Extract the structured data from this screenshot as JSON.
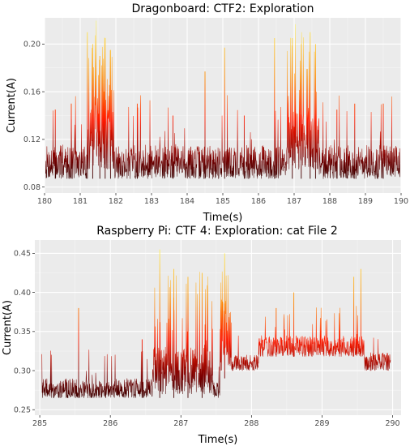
{
  "chart_data": [
    {
      "type": "line",
      "title": "Dragonboard: CTF2: Exploration",
      "xlabel": "Time(s)",
      "ylabel": "Current(A)",
      "xlim": [
        180,
        190
      ],
      "ylim": [
        0.075,
        0.222
      ],
      "xticks": [
        180,
        181,
        182,
        183,
        184,
        185,
        186,
        187,
        188,
        189,
        190
      ],
      "xtick_labels": [
        "180",
        "181",
        "182",
        "183",
        "184",
        "185",
        "186",
        "187",
        "188",
        "189",
        "190"
      ],
      "yticks": [
        0.08,
        0.12,
        0.16,
        0.2
      ],
      "ytick_labels": [
        "0.08",
        "0.12",
        "0.16",
        "0.20"
      ],
      "grid": true,
      "colormap": [
        "#1a0000",
        "#8b0000",
        "#ff0000",
        "#ff8c00",
        "#ffff66"
      ],
      "data_range": [
        180.03,
        189.97
      ],
      "baseline_segments": [
        {
          "x": [
            180.0,
            190.0
          ],
          "low": 0.087,
          "high": 0.115
        }
      ],
      "bursts": [
        {
          "x": [
            181.2,
            181.95
          ],
          "low": 0.095,
          "high": 0.145,
          "peak": 0.215
        },
        {
          "x": [
            186.8,
            187.7
          ],
          "low": 0.095,
          "high": 0.145,
          "peak": 0.21
        }
      ],
      "spikes": [
        {
          "x": 180.3,
          "y": 0.145
        },
        {
          "x": 180.75,
          "y": 0.15
        },
        {
          "x": 181.2,
          "y": 0.21
        },
        {
          "x": 181.35,
          "y": 0.2
        },
        {
          "x": 181.55,
          "y": 0.19
        },
        {
          "x": 181.7,
          "y": 0.205
        },
        {
          "x": 181.85,
          "y": 0.195
        },
        {
          "x": 182.6,
          "y": 0.15
        },
        {
          "x": 183.6,
          "y": 0.14
        },
        {
          "x": 184.5,
          "y": 0.177
        },
        {
          "x": 185.05,
          "y": 0.197
        },
        {
          "x": 185.6,
          "y": 0.14
        },
        {
          "x": 186.45,
          "y": 0.205
        },
        {
          "x": 186.95,
          "y": 0.205
        },
        {
          "x": 187.2,
          "y": 0.2
        },
        {
          "x": 187.45,
          "y": 0.21
        },
        {
          "x": 187.6,
          "y": 0.2
        },
        {
          "x": 188.2,
          "y": 0.145
        },
        {
          "x": 188.7,
          "y": 0.15
        },
        {
          "x": 189.5,
          "y": 0.15
        }
      ]
    },
    {
      "type": "line",
      "title": "Raspberry Pi: CTF 4: Exploration: cat File 2",
      "xlabel": "Time(s)",
      "ylabel": "Current(A)",
      "xlim": [
        284.93,
        290.12
      ],
      "ylim": [
        0.243,
        0.467
      ],
      "xticks": [
        285,
        286,
        287,
        288,
        289,
        290
      ],
      "xtick_labels": [
        "285",
        "286",
        "287",
        "288",
        "289",
        "290"
      ],
      "yticks": [
        0.25,
        0.3,
        0.35,
        0.4,
        0.45
      ],
      "ytick_labels": [
        "0.25",
        "0.30",
        "0.35",
        "0.40",
        "0.45"
      ],
      "grid": true,
      "colormap": [
        "#1a0000",
        "#8b0000",
        "#ff0000",
        "#ff8c00",
        "#ffff66"
      ],
      "data_range": [
        285.03,
        289.97
      ],
      "baseline_segments": [
        {
          "x": [
            285.03,
            287.55
          ],
          "low": 0.265,
          "high": 0.29
        },
        {
          "x": [
            287.55,
            287.7
          ],
          "low": 0.29,
          "high": 0.37
        },
        {
          "x": [
            287.7,
            288.1
          ],
          "low": 0.3,
          "high": 0.32
        },
        {
          "x": [
            288.1,
            289.6
          ],
          "low": 0.318,
          "high": 0.345
        },
        {
          "x": [
            289.6,
            289.97
          ],
          "low": 0.3,
          "high": 0.323
        }
      ],
      "bursts": [
        {
          "x": [
            286.6,
            287.45
          ],
          "low": 0.27,
          "high": 0.33,
          "peak": 0.43
        },
        {
          "x": [
            287.55,
            287.72
          ],
          "low": 0.3,
          "high": 0.39,
          "peak": 0.45
        }
      ],
      "spikes": [
        {
          "x": 285.55,
          "y": 0.38
        },
        {
          "x": 286.45,
          "y": 0.34
        },
        {
          "x": 286.7,
          "y": 0.455
        },
        {
          "x": 286.9,
          "y": 0.43
        },
        {
          "x": 287.1,
          "y": 0.42
        },
        {
          "x": 287.3,
          "y": 0.425
        },
        {
          "x": 287.62,
          "y": 0.45
        },
        {
          "x": 288.35,
          "y": 0.38
        },
        {
          "x": 288.6,
          "y": 0.4
        },
        {
          "x": 289.45,
          "y": 0.42
        },
        {
          "x": 289.55,
          "y": 0.43
        }
      ]
    }
  ]
}
